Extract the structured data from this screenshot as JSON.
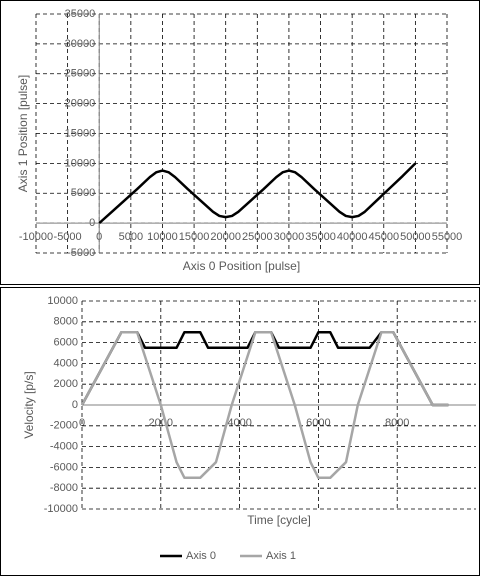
{
  "chart_data": [
    {
      "type": "line",
      "x_label": "Axis 0 Position [pulse]",
      "y_label": "Axis 1 Position [pulse]",
      "xlim": [
        -10000,
        55000
      ],
      "xticks": [
        -10000,
        -5000,
        0,
        5000,
        10000,
        15000,
        20000,
        25000,
        30000,
        35000,
        40000,
        45000,
        50000,
        55000
      ],
      "ylim": [
        -5000,
        35000
      ],
      "yticks": [
        -5000,
        0,
        5000,
        10000,
        15000,
        20000,
        25000,
        30000,
        35000
      ],
      "grid": true,
      "series": [
        {
          "color": "#000000",
          "x": [
            0,
            2000,
            4000,
            6000,
            8000,
            9000,
            10000,
            11000,
            12000,
            14000,
            16000,
            18000,
            19000,
            20000,
            21000,
            22000,
            24000,
            26000,
            28000,
            29000,
            30000,
            31000,
            32000,
            34000,
            36000,
            38000,
            39000,
            40000,
            41000,
            42000,
            44000,
            46000,
            48000,
            50000
          ],
          "values": [
            0,
            1900,
            3800,
            5700,
            7700,
            8500,
            8800,
            8500,
            7700,
            5700,
            3800,
            1900,
            1200,
            1000,
            1200,
            1900,
            3800,
            5700,
            7700,
            8500,
            8800,
            8500,
            7700,
            5700,
            3800,
            1900,
            1200,
            1000,
            1200,
            1900,
            3900,
            5900,
            7900,
            10000
          ]
        }
      ]
    },
    {
      "type": "line",
      "x_label": "Time [cycle]",
      "y_label": "Velocity [p/s]",
      "xlim": [
        0,
        10000
      ],
      "xticks": [
        0,
        2000,
        4000,
        6000,
        8000
      ],
      "ylim": [
        -10000,
        10000
      ],
      "yticks": [
        -10000,
        -8000,
        -6000,
        -4000,
        -2000,
        0,
        2000,
        4000,
        6000,
        8000,
        10000
      ],
      "grid": true,
      "series": [
        {
          "name": "Axis 0",
          "color": "#000000",
          "x": [
            0,
            1000,
            1400,
            1600,
            2400,
            2600,
            3000,
            3200,
            4200,
            4400,
            4800,
            5000,
            5800,
            6000,
            6300,
            6500,
            7300,
            7600,
            7900,
            8900,
            9300
          ],
          "values": [
            0,
            7000,
            7000,
            5500,
            5500,
            7000,
            7000,
            5500,
            5500,
            7000,
            7000,
            5500,
            5500,
            7000,
            7000,
            5500,
            5500,
            7000,
            7000,
            0,
            0
          ]
        },
        {
          "name": "Axis 1",
          "color": "#a6a6a6",
          "x": [
            0,
            1000,
            1400,
            2000,
            2400,
            2600,
            3000,
            3400,
            3800,
            4400,
            4800,
            5400,
            5800,
            6000,
            6300,
            6700,
            7000,
            7600,
            7900,
            8900,
            9300
          ],
          "values": [
            0,
            7000,
            7000,
            0,
            -5500,
            -7000,
            -7000,
            -5500,
            0,
            7000,
            7000,
            0,
            -5500,
            -7000,
            -7000,
            -5500,
            0,
            7000,
            7000,
            0,
            0
          ]
        }
      ]
    }
  ]
}
